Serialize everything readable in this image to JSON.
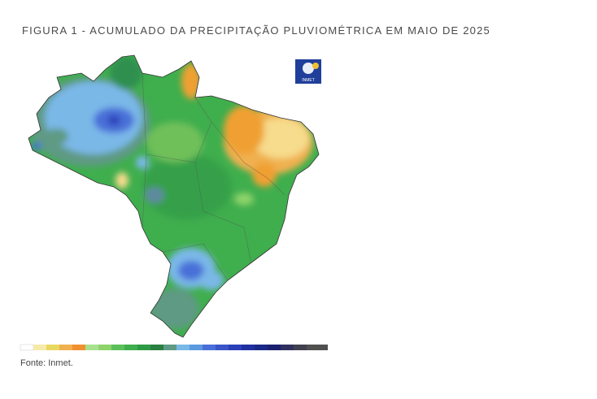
{
  "figure": {
    "title": "FIGURA 1 - ACUMULADO DA PRECIPITAÇÃO PLUVIOMÉTRICA EM MAIO DE 2025",
    "logo": "INMET",
    "source": "Fonte: Inmet."
  }
}
